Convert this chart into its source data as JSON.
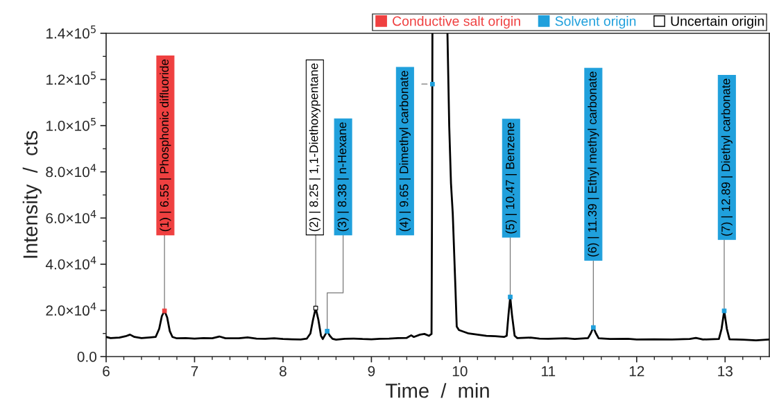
{
  "chart_data": {
    "type": "line",
    "xlabel": "Time  /  min",
    "ylabel": "Intensity  /  cts",
    "xlim": [
      6,
      13.5
    ],
    "xticks": [
      6,
      7,
      8,
      9,
      10,
      11,
      12,
      13
    ],
    "ylim": [
      0,
      140000
    ],
    "yticks": [
      {
        "value": 0,
        "label": "0.0"
      },
      {
        "value": 20000,
        "label": "2.0×10$^{4}$"
      },
      {
        "value": 40000,
        "label": "4.0×10$^{4}$"
      },
      {
        "value": 60000,
        "label": "6.0×10$^{4}$"
      },
      {
        "value": 80000,
        "label": "8.0×10$^{4}$"
      },
      {
        "value": 100000,
        "label": "1.0×10$^{5}$"
      },
      {
        "value": 120000,
        "label": "1.2×10$^{5}$"
      },
      {
        "value": 140000,
        "label": "1.4×10$^{5}$"
      }
    ],
    "grid": false,
    "legend": "top right",
    "line_style": "solid",
    "series": [
      {
        "color": "#000000",
        "x": [
          6.0,
          6.05,
          6.15,
          6.22,
          6.27,
          6.32,
          6.4,
          6.5,
          6.56,
          6.6,
          6.63,
          6.66,
          6.69,
          6.72,
          6.75,
          6.8,
          6.9,
          7.0,
          7.1,
          7.2,
          7.28,
          7.35,
          7.5,
          7.6,
          7.7,
          7.8,
          7.9,
          8.0,
          8.1,
          8.2,
          8.27,
          8.31,
          8.34,
          8.37,
          8.4,
          8.43,
          8.45,
          8.47,
          8.5,
          8.53,
          8.56,
          8.6,
          8.7,
          8.8,
          8.9,
          9.0,
          9.1,
          9.2,
          9.3,
          9.4,
          9.45,
          9.48,
          9.55,
          9.6,
          9.65,
          9.68,
          9.685,
          9.69,
          9.77,
          9.86,
          9.88,
          9.9,
          9.92,
          9.95,
          9.965,
          9.99,
          10.1,
          10.2,
          10.3,
          10.4,
          10.5,
          10.53,
          10.55,
          10.57,
          10.59,
          10.62,
          10.65,
          10.8,
          10.9,
          11.0,
          11.2,
          11.3,
          11.45,
          11.48,
          11.51,
          11.54,
          11.57,
          11.7,
          11.9,
          12.0,
          12.2,
          12.4,
          12.6,
          12.67,
          12.75,
          12.93,
          12.96,
          12.99,
          13.02,
          13.05,
          13.2,
          13.35,
          13.5
        ],
        "values": [
          8500,
          8000,
          8200,
          8800,
          9500,
          8500,
          8000,
          8300,
          8500,
          12000,
          17500,
          19800,
          17000,
          11000,
          8500,
          7900,
          8000,
          7800,
          8000,
          7900,
          8700,
          7900,
          7900,
          8300,
          7800,
          7700,
          7900,
          7600,
          7500,
          7400,
          7800,
          10000,
          16000,
          21000,
          16000,
          9000,
          7600,
          9000,
          11000,
          9000,
          7700,
          7300,
          7700,
          7800,
          7600,
          7500,
          7700,
          7800,
          8000,
          8100,
          9200,
          8500,
          9500,
          9800,
          9000,
          9800,
          60000,
          140000,
          null,
          140000,
          100000,
          75000,
          62000,
          30000,
          13000,
          11500,
          10000,
          9500,
          9000,
          8800,
          8500,
          9000,
          18000,
          25800,
          18000,
          9000,
          8000,
          8200,
          7800,
          7700,
          7900,
          7600,
          8000,
          10000,
          12600,
          10000,
          7900,
          7600,
          7700,
          7400,
          7500,
          7400,
          7600,
          8100,
          7400,
          7600,
          12000,
          19800,
          12000,
          7500,
          7300,
          7000,
          7400
        ]
      },
      {
        "type": "scatter",
        "name": "Conductive salt origin",
        "color": "#ef4040",
        "marker": "square",
        "x": [
          6.66
        ],
        "values": [
          19800
        ]
      },
      {
        "type": "scatter",
        "name": "Solvent origin",
        "color": "#20a0dc",
        "marker": "square",
        "x": [
          8.5,
          9.69,
          10.57,
          11.51,
          12.99
        ],
        "values": [
          11000,
          118000,
          25800,
          12600,
          19800
        ]
      },
      {
        "type": "scatter",
        "name": "Uncertain origin",
        "color": "#ffffff",
        "marker": "square",
        "x": [
          8.37
        ],
        "values": [
          21000
        ]
      }
    ],
    "annotations": [
      {
        "text": "(1) | 6.55 | Phosphonic difluoride",
        "x": 6.66,
        "y": 19800
      },
      {
        "text": "(2) | 8.25 | 1,1-Diethoxypentane",
        "x": 8.37,
        "y": 21000
      },
      {
        "text": "(3) | 8.38 | n-Hexane",
        "x": 8.5,
        "y": 11000
      },
      {
        "text": "(4) | 9.65 | Dimethyl carbonate",
        "x": 9.69,
        "y": 118000
      },
      {
        "text": "(5) | 10.47 | Benzene",
        "x": 10.57,
        "y": 25800
      },
      {
        "text": "(6) | 11.39 | Ethyl methyl carbonate",
        "x": 11.51,
        "y": 12600
      },
      {
        "text": "(7) | 12.89 | Diethyl carbonate",
        "x": 12.99,
        "y": 19800
      }
    ]
  }
}
